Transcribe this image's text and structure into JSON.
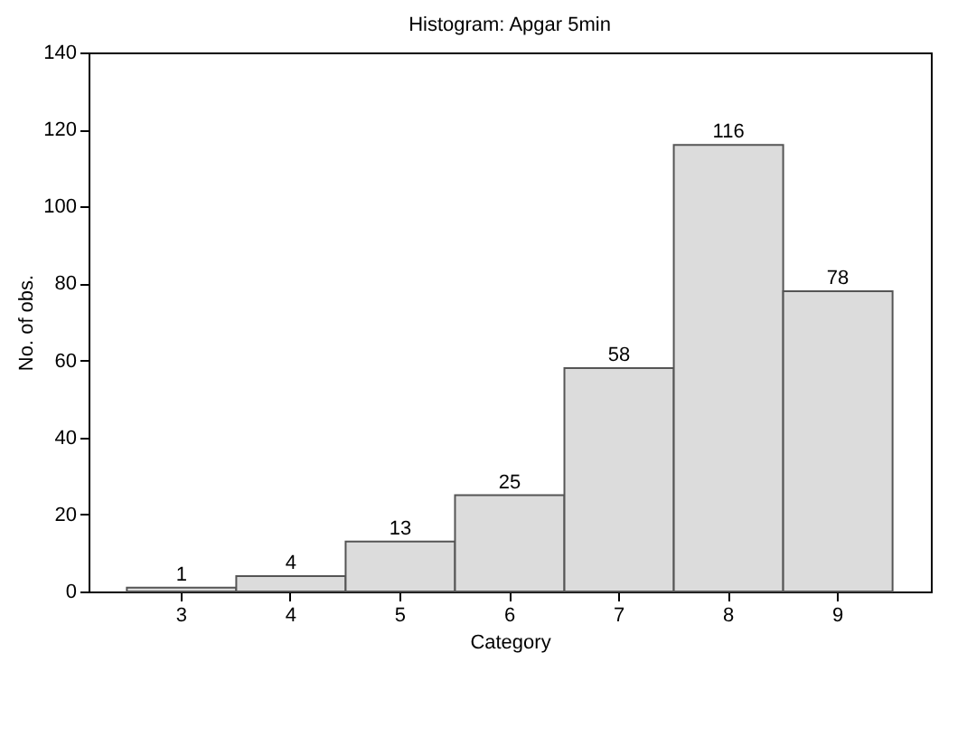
{
  "chart_data": {
    "type": "bar",
    "title": "Histogram: Apgar 5min",
    "xlabel": "Category",
    "ylabel": "No. of obs.",
    "categories": [
      "3",
      "4",
      "5",
      "6",
      "7",
      "8",
      "9"
    ],
    "values": [
      1,
      4,
      13,
      25,
      58,
      116,
      78
    ],
    "color": "#dcdcdc",
    "ylim": [
      0,
      140
    ],
    "yticks": [
      0,
      20,
      40,
      60,
      80,
      100,
      120,
      140
    ],
    "data_labels": true
  }
}
